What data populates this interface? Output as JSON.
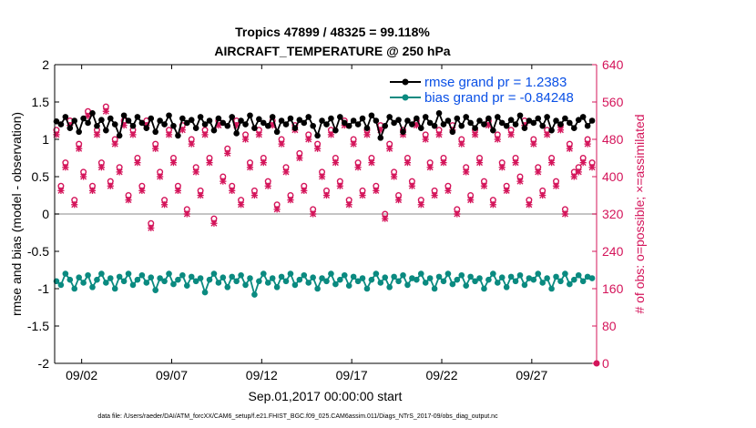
{
  "colors": {
    "rmse": "#000000",
    "bias": "#0a8a80",
    "obs": "#d4145a",
    "legend_text": "#0a50e6",
    "zero_line": "#b0b0b0"
  },
  "chart_data": {
    "type": "line",
    "title": [
      "Tropics 47899 / 48325 = 99.118%",
      "AIRCRAFT_TEMPERATURE @ 250 hPa"
    ],
    "xlabel": "Sep.01,2017 00:00:00 start",
    "ylabel": "rmse and bias (model - observation)",
    "y2label": "# of obs: o=possible; ×=assimilated",
    "xlim": [
      0.5,
      30.6
    ],
    "ylim": [
      -2,
      2
    ],
    "y2lim": [
      0,
      640
    ],
    "xtick_values": [
      2,
      7,
      12,
      17,
      22,
      27
    ],
    "xtick_labels": [
      "09/02",
      "09/07",
      "09/12",
      "09/17",
      "09/22",
      "09/27"
    ],
    "ytick_values": [
      -2,
      -1.5,
      -1,
      -0.5,
      0,
      0.5,
      1,
      1.5,
      2
    ],
    "ytick_labels": [
      "-2",
      "-1.5",
      "-1",
      "-0.5",
      "0",
      "0.5",
      "1",
      "1.5",
      "2"
    ],
    "y2tick_values": [
      0,
      80,
      160,
      240,
      320,
      400,
      480,
      560,
      640
    ],
    "y2tick_labels": [
      "0",
      "80",
      "160",
      "240",
      "320",
      "400",
      "480",
      "560",
      "640"
    ],
    "series": [
      {
        "name": "rmse grand pr = 1.2383",
        "axis": "left",
        "x_start": 0.6,
        "x_step": 0.25,
        "values": [
          1.24,
          1.2,
          1.3,
          1.15,
          1.25,
          1.1,
          1.28,
          1.22,
          1.35,
          1.18,
          1.26,
          1.12,
          1.28,
          1.2,
          1.05,
          1.32,
          1.25,
          1.18,
          1.3,
          1.22,
          1.15,
          1.28,
          1.1,
          1.25,
          1.2,
          1.32,
          1.18,
          1.05,
          1.28,
          1.22,
          1.26,
          1.15,
          1.3,
          1.2,
          1.25,
          1.12,
          1.28,
          1.22,
          1.18,
          1.3,
          1.08,
          1.25,
          1.2,
          1.32,
          1.15,
          1.27,
          1.22,
          1.18,
          1.3,
          1.1,
          1.25,
          1.2,
          1.28,
          1.15,
          1.26,
          1.22,
          1.3,
          1.18,
          1.05,
          1.25,
          1.2,
          1.28,
          1.12,
          1.3,
          1.22,
          1.18,
          1.25,
          1.2,
          1.28,
          1.15,
          1.32,
          1.25,
          1.02,
          1.18,
          1.3,
          1.22,
          1.26,
          1.1,
          1.25,
          1.2,
          1.28,
          1.15,
          1.3,
          1.22,
          1.18,
          1.35,
          1.2,
          1.25,
          1.1,
          1.28,
          1.18,
          1.3,
          1.22,
          1.15,
          1.25,
          1.2,
          1.28,
          1.12,
          1.3,
          1.22,
          1.18,
          1.26,
          1.2,
          1.32,
          1.15,
          1.25,
          1.22,
          1.28,
          1.18,
          1.3,
          1.12,
          1.25,
          1.2,
          1.28,
          1.22,
          1.15,
          1.26,
          1.3,
          1.18,
          1.25
        ]
      },
      {
        "name": "bias grand pr = -0.84248",
        "axis": "left",
        "x_start": 0.6,
        "x_step": 0.25,
        "values": [
          -0.9,
          -0.95,
          -0.8,
          -0.88,
          -1.0,
          -0.85,
          -0.92,
          -0.82,
          -0.98,
          -0.88,
          -0.8,
          -0.92,
          -0.86,
          -1.0,
          -0.84,
          -0.9,
          -0.8,
          -0.95,
          -0.88,
          -0.82,
          -0.92,
          -0.85,
          -1.02,
          -0.86,
          -0.9,
          -0.8,
          -0.94,
          -0.88,
          -0.82,
          -0.96,
          -0.84,
          -0.9,
          -0.86,
          -1.05,
          -0.88,
          -0.8,
          -0.92,
          -0.85,
          -0.98,
          -0.84,
          -0.9,
          -0.82,
          -0.95,
          -0.86,
          -1.08,
          -0.9,
          -0.8,
          -0.92,
          -0.86,
          -0.98,
          -0.84,
          -0.9,
          -0.8,
          -0.95,
          -0.88,
          -0.82,
          -0.92,
          -0.85,
          -1.0,
          -0.86,
          -0.9,
          -0.8,
          -0.94,
          -0.88,
          -0.82,
          -0.96,
          -0.84,
          -0.9,
          -0.86,
          -1.0,
          -0.88,
          -0.8,
          -0.92,
          -0.85,
          -0.98,
          -0.84,
          -0.9,
          -0.82,
          -0.95,
          -0.86,
          -0.88,
          -0.8,
          -0.92,
          -0.86,
          -1.0,
          -0.84,
          -0.9,
          -0.8,
          -0.94,
          -0.88,
          -0.82,
          -0.96,
          -0.84,
          -0.9,
          -0.86,
          -1.0,
          -0.88,
          -0.8,
          -0.92,
          -0.85,
          -0.98,
          -0.84,
          -0.9,
          -0.82,
          -0.95,
          -0.86,
          -0.88,
          -0.8,
          -0.92,
          -0.86,
          -1.0,
          -0.84,
          -0.9,
          -0.8,
          -0.94,
          -0.88,
          -0.82,
          -0.9,
          -0.84,
          -0.86
        ]
      },
      {
        "name": "obs possible (o)",
        "axis": "right",
        "x_start": 0.6,
        "x_step": 0.25,
        "values": [
          500,
          380,
          430,
          520,
          350,
          470,
          410,
          540,
          380,
          500,
          430,
          550,
          390,
          480,
          420,
          520,
          360,
          500,
          440,
          380,
          520,
          300,
          470,
          410,
          350,
          500,
          440,
          380,
          510,
          330,
          480,
          420,
          370,
          500,
          440,
          310,
          520,
          400,
          460,
          380,
          520,
          350,
          490,
          430,
          370,
          500,
          440,
          390,
          520,
          340,
          480,
          420,
          360,
          510,
          450,
          380,
          490,
          330,
          470,
          410,
          370,
          500,
          440,
          390,
          520,
          350,
          480,
          430,
          370,
          500,
          440,
          380,
          510,
          320,
          470,
          410,
          360,
          500,
          440,
          390,
          520,
          350,
          490,
          430,
          370,
          500,
          440,
          380,
          510,
          330,
          480,
          420,
          360,
          500,
          440,
          390,
          520,
          350,
          490,
          430,
          380,
          500,
          440,
          400,
          520,
          350,
          480,
          420,
          370,
          500,
          440,
          390,
          510,
          330,
          470,
          410,
          420,
          440,
          480,
          430
        ]
      },
      {
        "name": "obs assimilated (×)",
        "axis": "right",
        "x_start": 0.6,
        "x_step": 0.25,
        "values": [
          490,
          370,
          420,
          510,
          340,
          460,
          400,
          530,
          370,
          490,
          420,
          540,
          380,
          470,
          410,
          510,
          350,
          490,
          430,
          370,
          510,
          290,
          460,
          400,
          340,
          490,
          430,
          370,
          500,
          320,
          470,
          410,
          360,
          490,
          430,
          300,
          510,
          390,
          450,
          370,
          510,
          340,
          480,
          420,
          360,
          490,
          430,
          380,
          510,
          330,
          470,
          410,
          350,
          500,
          440,
          370,
          480,
          320,
          460,
          400,
          360,
          490,
          430,
          380,
          510,
          340,
          470,
          420,
          360,
          490,
          430,
          370,
          500,
          310,
          460,
          400,
          350,
          490,
          430,
          380,
          510,
          340,
          480,
          420,
          360,
          490,
          430,
          370,
          500,
          320,
          470,
          410,
          350,
          490,
          430,
          380,
          510,
          340,
          480,
          420,
          370,
          490,
          430,
          390,
          510,
          340,
          470,
          410,
          360,
          490,
          430,
          380,
          500,
          320,
          460,
          400,
          410,
          430,
          470,
          420
        ]
      }
    ],
    "legend": [
      {
        "label": "rmse grand pr = 1.2383",
        "color": "#000000"
      },
      {
        "label": "bias grand pr = -0.84248",
        "color": "#0a8a80"
      }
    ],
    "footer": "data file: /Users/raeder/DAI/ATM_forcXX/CAM6_setup/f.e21.FHIST_BGC.f09_025.CAM6assim.011/Diags_NTrS_2017-09/obs_diag_output.nc",
    "grid": false
  }
}
